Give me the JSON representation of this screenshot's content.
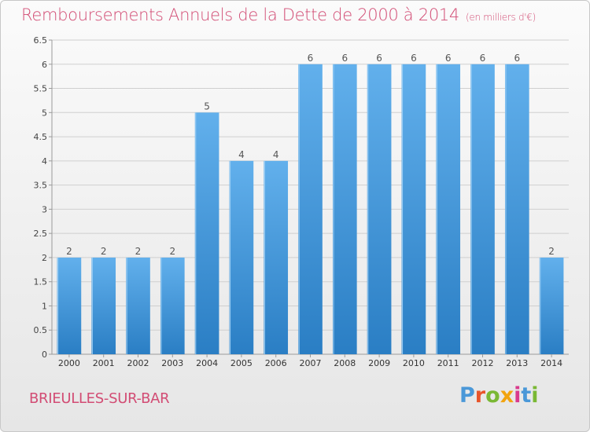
{
  "header": {
    "title": "Remboursements Annuels de la Dette de 2000 à 2014",
    "unit": "(en milliers d'€)"
  },
  "footer": {
    "commune": "BRIEULLES-SUR-BAR",
    "brand_letters": [
      "P",
      "r",
      "o",
      "x",
      "i",
      "t",
      "i"
    ]
  },
  "colors": {
    "title": "#d24c74",
    "bar_top": "#62b0ec",
    "bar_bottom": "#2a7ec4",
    "grid": "#cfcfcf"
  },
  "chart_data": {
    "type": "bar",
    "title": "Remboursements Annuels de la Dette de 2000 à 2014",
    "xlabel": "",
    "ylabel": "",
    "categories": [
      "2000",
      "2001",
      "2002",
      "2003",
      "2004",
      "2005",
      "2006",
      "2007",
      "2008",
      "2009",
      "2010",
      "2011",
      "2012",
      "2013",
      "2014"
    ],
    "values": [
      2,
      2,
      2,
      2,
      5,
      4,
      4,
      6,
      6,
      6,
      6,
      6,
      6,
      6,
      2
    ],
    "data_labels": [
      "2",
      "2",
      "2",
      "2",
      "5",
      "4",
      "4",
      "6",
      "6",
      "6",
      "6",
      "6",
      "6",
      "6",
      "2"
    ],
    "ylim": [
      0,
      6.5
    ],
    "yticks": [
      0,
      0.5,
      1,
      1.5,
      2,
      2.5,
      3,
      3.5,
      4,
      4.5,
      5,
      5.5,
      6,
      6.5
    ],
    "ytick_labels": [
      "0",
      "0.5",
      "1",
      "1.5",
      "2",
      "2.5",
      "3",
      "3.5",
      "4",
      "4.5",
      "5",
      "5.5",
      "6",
      "6.5"
    ],
    "grid": true,
    "legend": "none"
  }
}
